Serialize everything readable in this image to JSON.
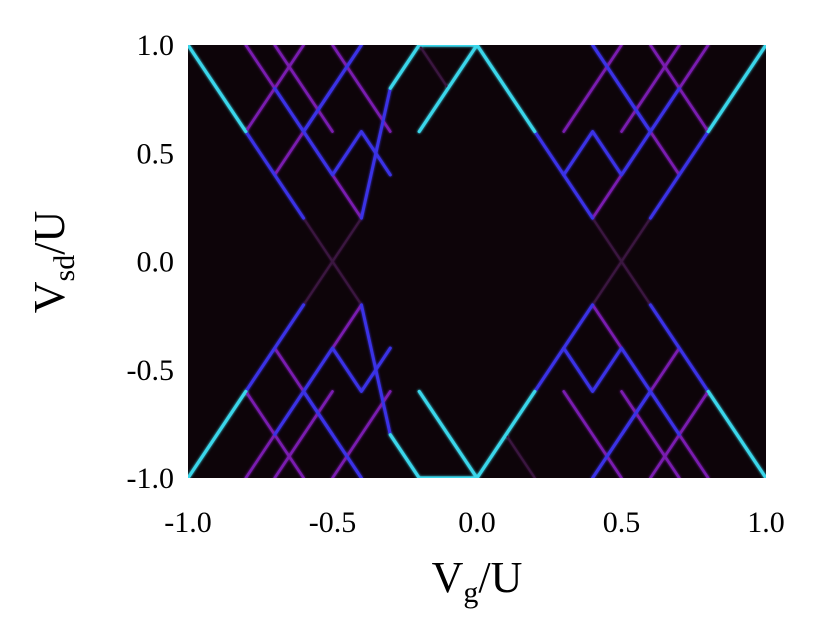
{
  "chart_data": {
    "type": "heatmap",
    "title": "",
    "xlabel": {
      "main": "V",
      "sub": "g",
      "rest": "/U"
    },
    "ylabel": {
      "main": "V",
      "sub": "sd",
      "rest": "/U"
    },
    "xlim": [
      -1.0,
      1.0
    ],
    "ylim": [
      -1.0,
      1.0
    ],
    "xticks": [
      -1.0,
      -0.5,
      0.0,
      0.5,
      1.0
    ],
    "yticks": [
      -1.0,
      -0.5,
      0.0,
      0.5,
      1.0
    ],
    "xtick_labels": [
      "-1.0",
      "-0.5",
      "0.0",
      "0.5",
      "1.0"
    ],
    "ytick_labels": [
      "-1.0",
      "-0.5",
      "0.0",
      "0.5",
      "1.0"
    ],
    "background_color": "#0d0409",
    "colors": {
      "strong": "#3ad6ea",
      "medium": "#3a33e6",
      "weak": "#7a1fb0",
      "faint": "#3a1540"
    },
    "lines": [
      {
        "group": "main-left-outer",
        "intensity": "strong",
        "points": [
          [
            -1.0,
            1.0
          ],
          [
            -0.8,
            0.6
          ]
        ]
      },
      {
        "group": "main-left-outer",
        "intensity": "medium",
        "points": [
          [
            -0.8,
            0.6
          ],
          [
            -0.6,
            0.2
          ]
        ]
      },
      {
        "group": "main-left-outer",
        "intensity": "strong",
        "points": [
          [
            -1.0,
            -1.0
          ],
          [
            -0.8,
            -0.6
          ]
        ]
      },
      {
        "group": "main-left-outer",
        "intensity": "medium",
        "points": [
          [
            -0.8,
            -0.6
          ],
          [
            -0.6,
            -0.2
          ]
        ]
      },
      {
        "group": "main-left-inner",
        "intensity": "strong",
        "points": [
          [
            -0.2,
            1.0
          ],
          [
            -0.3,
            0.8
          ]
        ]
      },
      {
        "group": "main-left-inner",
        "intensity": "medium",
        "points": [
          [
            -0.3,
            0.8
          ],
          [
            -0.4,
            0.2
          ]
        ]
      },
      {
        "group": "main-left-inner",
        "intensity": "strong",
        "points": [
          [
            -0.2,
            -1.0
          ],
          [
            -0.3,
            -0.8
          ]
        ]
      },
      {
        "group": "main-left-inner",
        "intensity": "medium",
        "points": [
          [
            -0.3,
            -0.8
          ],
          [
            -0.4,
            -0.2
          ]
        ]
      },
      {
        "group": "main-center",
        "intensity": "strong",
        "points": [
          [
            -0.2,
            1.0
          ],
          [
            0.0,
            1.0
          ],
          [
            0.2,
            0.6
          ]
        ]
      },
      {
        "group": "main-center",
        "intensity": "strong",
        "points": [
          [
            -0.2,
            0.6
          ],
          [
            0.0,
            1.0
          ]
        ]
      },
      {
        "group": "main-center",
        "intensity": "strong",
        "points": [
          [
            -0.2,
            -1.0
          ],
          [
            0.0,
            -1.0
          ],
          [
            0.2,
            -0.6
          ]
        ]
      },
      {
        "group": "main-center",
        "intensity": "strong",
        "points": [
          [
            -0.2,
            -0.6
          ],
          [
            0.0,
            -1.0
          ]
        ]
      },
      {
        "group": "main-right-outer",
        "intensity": "strong",
        "points": [
          [
            1.0,
            1.0
          ],
          [
            0.8,
            0.6
          ]
        ]
      },
      {
        "group": "main-right-outer",
        "intensity": "medium",
        "points": [
          [
            0.8,
            0.6
          ],
          [
            0.6,
            0.2
          ]
        ]
      },
      {
        "group": "main-right-outer",
        "intensity": "strong",
        "points": [
          [
            1.0,
            -1.0
          ],
          [
            0.8,
            -0.6
          ]
        ]
      },
      {
        "group": "main-right-outer",
        "intensity": "medium",
        "points": [
          [
            0.8,
            -0.6
          ],
          [
            0.6,
            -0.2
          ]
        ]
      },
      {
        "group": "main-right-inner",
        "intensity": "medium",
        "points": [
          [
            0.2,
            0.6
          ],
          [
            0.4,
            0.2
          ]
        ]
      },
      {
        "group": "main-right-inner",
        "intensity": "medium",
        "points": [
          [
            0.2,
            -0.6
          ],
          [
            0.4,
            -0.2
          ]
        ]
      },
      {
        "group": "grid-weak",
        "intensity": "weak",
        "points": [
          [
            -0.8,
            1.0
          ],
          [
            -0.4,
            0.2
          ]
        ]
      },
      {
        "group": "grid-weak",
        "intensity": "weak",
        "points": [
          [
            -0.6,
            1.0
          ],
          [
            -0.8,
            0.6
          ]
        ]
      },
      {
        "group": "grid-weak",
        "intensity": "weak",
        "points": [
          [
            -0.4,
            1.0
          ],
          [
            -0.7,
            0.4
          ]
        ]
      },
      {
        "group": "grid-weak",
        "intensity": "weak",
        "points": [
          [
            -0.7,
            1.0
          ],
          [
            -0.5,
            0.6
          ]
        ]
      },
      {
        "group": "grid-weak",
        "intensity": "weak",
        "points": [
          [
            -0.5,
            1.0
          ],
          [
            -0.3,
            0.6
          ]
        ]
      },
      {
        "group": "grid-weak",
        "intensity": "weak",
        "points": [
          [
            -0.6,
            0.6
          ],
          [
            -0.5,
            0.4
          ]
        ]
      },
      {
        "group": "grid-weak",
        "intensity": "weak",
        "points": [
          [
            -0.8,
            -1.0
          ],
          [
            -0.4,
            -0.2
          ]
        ]
      },
      {
        "group": "grid-weak",
        "intensity": "weak",
        "points": [
          [
            -0.6,
            -1.0
          ],
          [
            -0.8,
            -0.6
          ]
        ]
      },
      {
        "group": "grid-weak",
        "intensity": "weak",
        "points": [
          [
            -0.4,
            -1.0
          ],
          [
            -0.7,
            -0.4
          ]
        ]
      },
      {
        "group": "grid-weak",
        "intensity": "weak",
        "points": [
          [
            -0.7,
            -1.0
          ],
          [
            -0.5,
            -0.6
          ]
        ]
      },
      {
        "group": "grid-weak",
        "intensity": "weak",
        "points": [
          [
            -0.5,
            -1.0
          ],
          [
            -0.3,
            -0.6
          ]
        ]
      },
      {
        "group": "grid-weak",
        "intensity": "weak",
        "points": [
          [
            0.8,
            1.0
          ],
          [
            0.4,
            0.2
          ]
        ]
      },
      {
        "group": "grid-weak",
        "intensity": "weak",
        "points": [
          [
            0.6,
            1.0
          ],
          [
            0.8,
            0.6
          ]
        ]
      },
      {
        "group": "grid-weak",
        "intensity": "weak",
        "points": [
          [
            0.4,
            1.0
          ],
          [
            0.7,
            0.4
          ]
        ]
      },
      {
        "group": "grid-weak",
        "intensity": "weak",
        "points": [
          [
            0.7,
            1.0
          ],
          [
            0.5,
            0.6
          ]
        ]
      },
      {
        "group": "grid-weak",
        "intensity": "weak",
        "points": [
          [
            0.5,
            1.0
          ],
          [
            0.3,
            0.6
          ]
        ]
      },
      {
        "group": "grid-weak",
        "intensity": "weak",
        "points": [
          [
            0.8,
            -1.0
          ],
          [
            0.4,
            -0.2
          ]
        ]
      },
      {
        "group": "grid-weak",
        "intensity": "weak",
        "points": [
          [
            0.6,
            -1.0
          ],
          [
            0.8,
            -0.6
          ]
        ]
      },
      {
        "group": "grid-weak",
        "intensity": "weak",
        "points": [
          [
            0.4,
            -1.0
          ],
          [
            0.7,
            -0.4
          ]
        ]
      },
      {
        "group": "grid-weak",
        "intensity": "weak",
        "points": [
          [
            0.7,
            -1.0
          ],
          [
            0.5,
            -0.6
          ]
        ]
      },
      {
        "group": "grid-weak",
        "intensity": "weak",
        "points": [
          [
            0.5,
            -1.0
          ],
          [
            0.3,
            -0.6
          ]
        ]
      },
      {
        "group": "grid-medium",
        "intensity": "medium",
        "points": [
          [
            -0.7,
            0.8
          ],
          [
            -0.5,
            0.4
          ],
          [
            -0.4,
            0.6
          ],
          [
            -0.3,
            0.4
          ]
        ]
      },
      {
        "group": "grid-medium",
        "intensity": "medium",
        "points": [
          [
            -0.6,
            0.6
          ],
          [
            -0.4,
            1.0
          ]
        ]
      },
      {
        "group": "grid-medium",
        "intensity": "medium",
        "points": [
          [
            -0.5,
            0.8
          ],
          [
            -0.6,
            0.6
          ]
        ]
      },
      {
        "group": "grid-medium",
        "intensity": "medium",
        "points": [
          [
            -0.7,
            -0.8
          ],
          [
            -0.5,
            -0.4
          ],
          [
            -0.4,
            -0.6
          ],
          [
            -0.3,
            -0.4
          ]
        ]
      },
      {
        "group": "grid-medium",
        "intensity": "medium",
        "points": [
          [
            -0.6,
            -0.6
          ],
          [
            -0.4,
            -1.0
          ]
        ]
      },
      {
        "group": "grid-medium",
        "intensity": "medium",
        "points": [
          [
            -0.5,
            -0.8
          ],
          [
            -0.6,
            -0.6
          ]
        ]
      },
      {
        "group": "grid-medium",
        "intensity": "medium",
        "points": [
          [
            0.7,
            0.8
          ],
          [
            0.5,
            0.4
          ],
          [
            0.4,
            0.6
          ],
          [
            0.3,
            0.4
          ]
        ]
      },
      {
        "group": "grid-medium",
        "intensity": "medium",
        "points": [
          [
            0.6,
            0.6
          ],
          [
            0.4,
            1.0
          ]
        ]
      },
      {
        "group": "grid-medium",
        "intensity": "medium",
        "points": [
          [
            0.5,
            0.8
          ],
          [
            0.6,
            0.6
          ]
        ]
      },
      {
        "group": "grid-medium",
        "intensity": "medium",
        "points": [
          [
            0.7,
            -0.8
          ],
          [
            0.5,
            -0.4
          ],
          [
            0.4,
            -0.6
          ],
          [
            0.3,
            -0.4
          ]
        ]
      },
      {
        "group": "grid-medium",
        "intensity": "medium",
        "points": [
          [
            0.6,
            -0.6
          ],
          [
            0.4,
            -1.0
          ]
        ]
      },
      {
        "group": "grid-medium",
        "intensity": "medium",
        "points": [
          [
            0.5,
            -0.8
          ],
          [
            0.6,
            -0.6
          ]
        ]
      },
      {
        "group": "faint-cross",
        "intensity": "faint",
        "points": [
          [
            -0.6,
            0.2
          ],
          [
            -0.5,
            0.0
          ],
          [
            -0.6,
            -0.2
          ]
        ]
      },
      {
        "group": "faint-cross",
        "intensity": "faint",
        "points": [
          [
            -0.4,
            0.2
          ],
          [
            -0.5,
            0.0
          ],
          [
            -0.4,
            -0.2
          ]
        ]
      },
      {
        "group": "faint-cross",
        "intensity": "faint",
        "points": [
          [
            0.4,
            0.2
          ],
          [
            0.5,
            0.0
          ],
          [
            0.4,
            -0.2
          ]
        ]
      },
      {
        "group": "faint-cross",
        "intensity": "faint",
        "points": [
          [
            0.6,
            0.2
          ],
          [
            0.5,
            0.0
          ],
          [
            0.6,
            -0.2
          ]
        ]
      },
      {
        "group": "faint-cross",
        "intensity": "faint",
        "points": [
          [
            -0.2,
            1.0
          ],
          [
            -0.1,
            0.8
          ]
        ]
      },
      {
        "group": "faint-cross",
        "intensity": "faint",
        "points": [
          [
            0.2,
            -1.0
          ],
          [
            0.1,
            -0.8
          ]
        ]
      }
    ]
  }
}
